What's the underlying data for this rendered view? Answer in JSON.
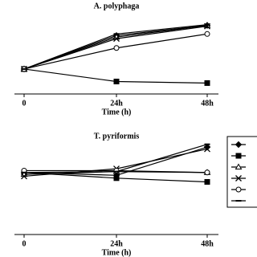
{
  "chart_data": [
    {
      "type": "line",
      "title": "A. polyphaga",
      "x_label": "Time (h)",
      "categories": [
        "0",
        "24h",
        "48h"
      ],
      "ylim": [
        0,
        100
      ],
      "series": [
        {
          "color": "#000000",
          "marker": "diamond",
          "values": [
            32,
            75,
            88
          ]
        },
        {
          "color": "#000000",
          "marker": "square",
          "values": [
            32,
            16,
            14
          ]
        },
        {
          "color": "#000000",
          "marker": "triangle",
          "values": [
            32,
            73,
            88
          ]
        },
        {
          "color": "#000000",
          "marker": "cross",
          "values": [
            32,
            71,
            87
          ]
        },
        {
          "color": "#000000",
          "marker": "circle",
          "values": [
            32,
            59,
            77
          ]
        },
        {
          "color": "#000000",
          "marker": "dash",
          "values": [
            32,
            77,
            89
          ]
        }
      ]
    },
    {
      "type": "line",
      "title": "T. pyriformis",
      "x_label": "Time (h)",
      "categories": [
        "0",
        "24h",
        "48h"
      ],
      "ylim": [
        0,
        100
      ],
      "legend": "right",
      "series": [
        {
          "color": "#000000",
          "marker": "diamond",
          "values": [
            66,
            63,
            93
          ]
        },
        {
          "color": "#000000",
          "marker": "square",
          "values": [
            66,
            60,
            56
          ]
        },
        {
          "color": "#000000",
          "marker": "triangle",
          "values": [
            64,
            67,
            66
          ]
        },
        {
          "color": "#000000",
          "marker": "cross",
          "values": [
            62,
            70,
            91
          ]
        },
        {
          "color": "#000000",
          "marker": "circle",
          "values": [
            68,
            68,
            66
          ]
        },
        {
          "color": "#000000",
          "marker": "dash",
          "values": [
            66,
            67,
            96
          ]
        }
      ]
    }
  ]
}
